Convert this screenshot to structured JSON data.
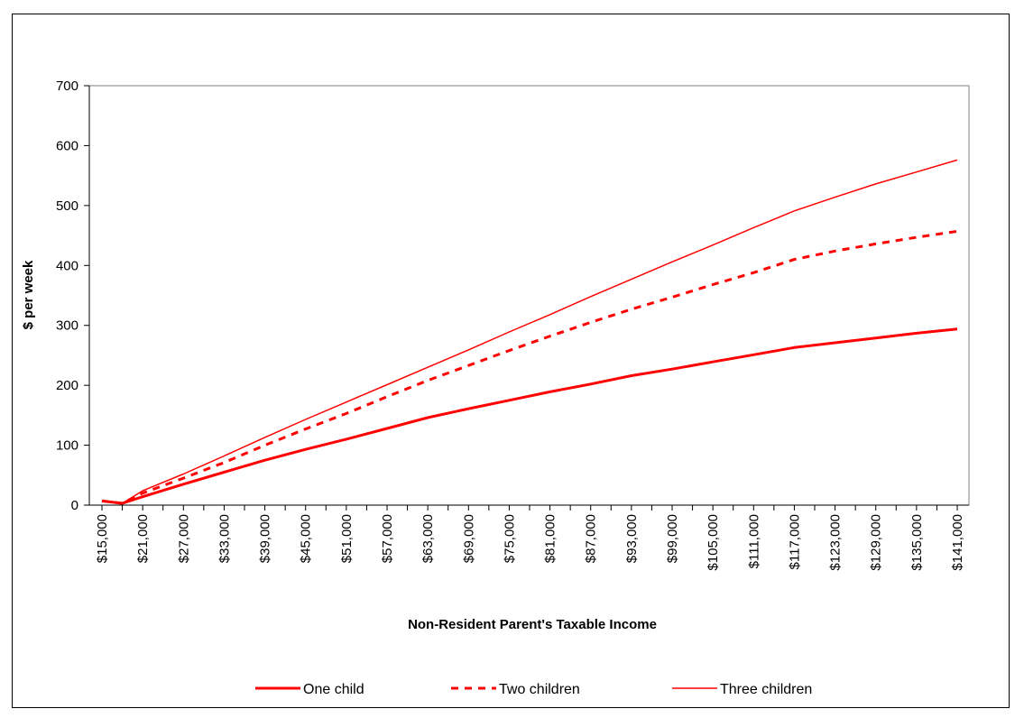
{
  "chart_data": {
    "type": "line",
    "title": "",
    "xlabel": "Non-Resident Parent's Taxable Income",
    "ylabel": "$ per week",
    "ylim": [
      0,
      700
    ],
    "yticks": [
      "0",
      "100",
      "200",
      "300",
      "400",
      "500",
      "600",
      "700"
    ],
    "x_tick_labels": [
      "$15,000",
      "$21,000",
      "$27,000",
      "$33,000",
      "$39,000",
      "$45,000",
      "$51,000",
      "$57,000",
      "$63,000",
      "$69,000",
      "$75,000",
      "$81,000",
      "$87,000",
      "$93,000",
      "$99,000",
      "$105,000",
      "$111,000",
      "$117,000",
      "$123,000",
      "$129,000",
      "$135,000",
      "$141,000"
    ],
    "x": [
      15000,
      18000,
      21000,
      27000,
      33000,
      39000,
      45000,
      51000,
      57000,
      63000,
      69000,
      75000,
      81000,
      87000,
      93000,
      99000,
      105000,
      111000,
      117000,
      123000,
      129000,
      135000,
      141000
    ],
    "grid": false,
    "legend_position": "bottom",
    "series": [
      {
        "name": "One child",
        "style": "thick-solid",
        "color": "#ff0000",
        "values": [
          7,
          3,
          14,
          35,
          55,
          75,
          93,
          110,
          128,
          146,
          161,
          175,
          189,
          202,
          216,
          227,
          239,
          251,
          263,
          271,
          279,
          287,
          294
        ]
      },
      {
        "name": "Two children",
        "style": "dashed",
        "color": "#ff0000",
        "values": [
          7,
          3,
          20,
          45,
          71,
          100,
          127,
          153,
          181,
          208,
          233,
          258,
          282,
          305,
          327,
          347,
          368,
          388,
          410,
          424,
          436,
          447,
          457
        ]
      },
      {
        "name": "Three children",
        "style": "thin-solid",
        "color": "#ff0000",
        "values": [
          7,
          3,
          24,
          52,
          82,
          113,
          143,
          172,
          201,
          230,
          259,
          289,
          318,
          348,
          377,
          406,
          434,
          463,
          491,
          514,
          536,
          556,
          576
        ]
      }
    ]
  }
}
